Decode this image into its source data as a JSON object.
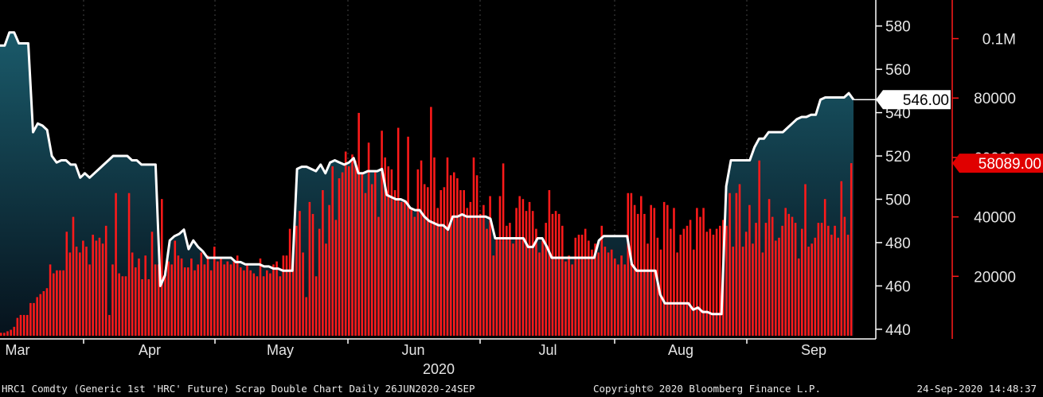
{
  "chart_data": {
    "type": "area+bar",
    "title": "",
    "x_axis": {
      "months": [
        "Mar",
        "Apr",
        "May",
        "Jun",
        "Jul",
        "Aug",
        "Sep"
      ],
      "year": "2020"
    },
    "y_axis_price": {
      "ticks": [
        "440",
        "460",
        "480",
        "500",
        "520",
        "540",
        "560",
        "580"
      ],
      "ylim": [
        437,
        592
      ],
      "last_value_label": "546.00"
    },
    "y_axis_volume": {
      "ticks": [
        "20000",
        "40000",
        "60000",
        "80000",
        "0.1M"
      ],
      "tick_values": [
        20000,
        40000,
        60000,
        80000,
        100000
      ],
      "ylim": [
        0,
        113000
      ],
      "last_value_label": "58089.00"
    },
    "series": [
      {
        "kind": "price-area",
        "color": "#ffffff",
        "values": [
          571,
          571,
          577,
          577,
          572,
          572,
          572,
          531,
          535,
          534,
          532,
          520,
          517,
          518,
          518,
          516,
          516,
          510,
          512,
          510,
          512,
          514,
          516,
          518,
          520,
          520,
          520,
          520,
          518,
          518,
          516,
          516,
          516,
          516,
          460,
          465,
          481,
          483,
          484,
          486,
          477,
          481,
          478,
          476,
          473,
          473,
          473,
          473,
          473,
          473,
          471,
          471,
          470,
          470,
          470,
          470,
          469,
          469,
          468,
          468,
          467,
          467,
          467,
          514,
          515,
          515,
          514,
          513,
          516,
          512,
          517,
          518,
          517,
          516,
          517,
          519,
          512,
          512,
          513,
          513,
          513,
          514,
          502,
          501,
          500,
          500,
          499,
          496,
          495,
          495,
          492,
          490,
          489,
          488,
          488,
          486,
          492,
          492,
          493,
          492,
          492,
          492,
          492,
          492,
          491,
          482,
          482,
          482,
          482,
          482,
          482,
          482,
          478,
          478,
          482,
          482,
          478,
          473,
          473,
          473,
          473,
          473,
          473,
          473,
          473,
          473,
          473,
          481,
          483,
          483,
          483,
          483,
          483,
          483,
          470,
          467,
          467,
          467,
          467,
          467,
          456,
          452,
          452,
          452,
          452,
          452,
          452,
          449,
          450,
          448,
          448,
          447,
          447,
          447,
          506,
          518,
          518,
          518,
          518,
          518,
          524,
          528,
          528,
          531,
          531,
          531,
          531,
          533,
          535,
          537,
          538,
          538,
          539,
          539,
          546,
          547,
          547,
          547,
          547,
          547,
          549,
          546
        ],
        "last": 546.0
      },
      {
        "kind": "volume-bars",
        "color": "#ff1a1a",
        "values": [
          1000,
          1000,
          1500,
          2000,
          3000,
          6000,
          7000,
          7000,
          7000,
          11000,
          11000,
          13000,
          14000,
          15000,
          16000,
          24000,
          21000,
          22000,
          22000,
          22000,
          35000,
          28000,
          40000,
          30000,
          28000,
          32000,
          30000,
          24000,
          34000,
          32000,
          33000,
          31000,
          37000,
          7000,
          24000,
          48000,
          21000,
          20000,
          20000,
          48000,
          28000,
          23000,
          26000,
          19000,
          27000,
          19000,
          35000,
          24000,
          24000,
          46000,
          22000,
          25000,
          24000,
          32000,
          27000,
          26000,
          23000,
          23000,
          26000,
          22000,
          24000,
          28000,
          24000,
          27000,
          22000,
          30000,
          25000,
          26000,
          24000,
          25000,
          24000,
          25000,
          27000,
          23000,
          22000,
          24000,
          22000,
          21000,
          20000,
          26000,
          20000,
          22000,
          21000,
          24000,
          25000,
          20000,
          27000,
          27000,
          36000,
          27000,
          37000,
          42000,
          28000,
          13000,
          45000,
          41000,
          20000,
          36000,
          49000,
          31000,
          44000,
          57000,
          39000,
          53000,
          55000,
          62000,
          57000,
          61000,
          59000,
          75000,
          55000,
          48000,
          65000,
          51000,
          55000,
          40000,
          69000,
          60000,
          57000,
          56000,
          49000,
          70000,
          45000,
          45000,
          67000,
          43000,
          40000,
          56000,
          59000,
          51000,
          50000,
          77000,
          60000,
          43000,
          49000,
          50000,
          60000,
          54000,
          55000,
          53000,
          49000,
          49000,
          43000,
          45000,
          60000,
          54000,
          41000,
          44000,
          36000,
          47000,
          27000,
          33000,
          47000,
          58000,
          37000,
          38000,
          31000,
          43000,
          47000,
          46000,
          42000,
          45000,
          42000,
          36000,
          28000,
          32000,
          38000,
          49000,
          41000,
          42000,
          41000,
          37000,
          25000,
          27000,
          24000,
          33000,
          34000,
          34000,
          36000,
          32000,
          29000,
          31000,
          28000,
          37000,
          30000,
          28000,
          29000,
          26000,
          24000,
          27000,
          24000,
          48000,
          48000,
          44000,
          41000,
          47000,
          41000,
          31000,
          44000,
          43000,
          33000,
          29000,
          45000,
          44000,
          36000,
          43000,
          28000,
          34000,
          36000,
          37000,
          39000,
          29000,
          43000,
          40000,
          43000,
          35000,
          36000,
          34000,
          36000,
          37000,
          39000,
          37000,
          48000,
          30000,
          48000,
          51000,
          30000,
          35000,
          44000,
          31000,
          38000,
          59000,
          28000,
          38000,
          46000,
          40000,
          32000,
          33000,
          37000,
          43000,
          41000,
          40000,
          38000,
          26000,
          36000,
          51000,
          30000,
          31000,
          33000,
          38000,
          38000,
          46000,
          37000,
          34000,
          37000,
          33000,
          52000,
          40000,
          34000,
          58089
        ],
        "last": 58089
      }
    ]
  },
  "footer": {
    "left": "HRC1 Comdty (Generic 1st 'HRC' Future) Scrap Double Chart  Daily 26JUN2020-24SEP",
    "center": "Copyright© 2020 Bloomberg Finance L.P.",
    "right": "24-Sep-2020 14:48:37"
  },
  "colors": {
    "background": "#000000",
    "area_top": "#1a5a6a",
    "area_bottom": "#06121c",
    "price_line": "#ffffff",
    "volume": "#ff1a1a",
    "grid": "#444444",
    "axis": "#ffffff"
  }
}
